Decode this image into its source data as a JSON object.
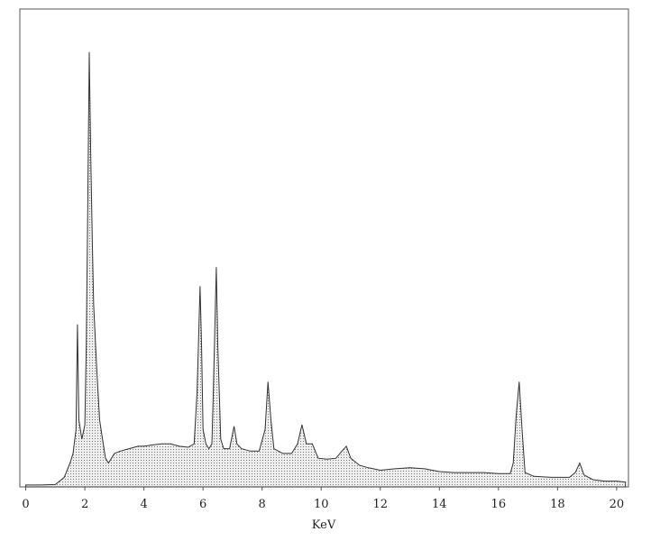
{
  "chart_data": {
    "type": "area",
    "x_label": "KeV",
    "x": [
      0,
      0.5,
      1.0,
      1.1,
      1.3,
      1.5,
      1.6,
      1.7,
      1.75,
      1.8,
      1.9,
      2.0,
      2.05,
      2.1,
      2.15,
      2.2,
      2.25,
      2.3,
      2.4,
      2.5,
      2.6,
      2.7,
      2.8,
      2.9,
      3.0,
      3.2,
      3.5,
      3.8,
      4.0,
      4.3,
      4.6,
      4.9,
      5.2,
      5.5,
      5.7,
      5.8,
      5.9,
      5.95,
      6.0,
      6.1,
      6.2,
      6.3,
      6.35,
      6.45,
      6.5,
      6.6,
      6.7,
      6.9,
      7.05,
      7.15,
      7.3,
      7.6,
      7.9,
      8.1,
      8.2,
      8.3,
      8.4,
      8.7,
      9.0,
      9.2,
      9.35,
      9.5,
      9.7,
      9.9,
      10.2,
      10.5,
      10.7,
      10.85,
      11.0,
      11.3,
      11.6,
      12.0,
      12.5,
      13.0,
      13.5,
      14.0,
      14.5,
      15.0,
      15.5,
      16.0,
      16.4,
      16.5,
      16.6,
      16.7,
      16.8,
      16.9,
      17.2,
      17.8,
      18.4,
      18.6,
      18.75,
      18.9,
      19.2,
      19.6,
      20.0,
      20.3
    ],
    "values": [
      0.4,
      0.4,
      0.5,
      1,
      2,
      5,
      7,
      12,
      34,
      14,
      10,
      13,
      30,
      60,
      91,
      70,
      52,
      38,
      25,
      14,
      10,
      6,
      5,
      6,
      7,
      7.5,
      8,
      8.5,
      8.5,
      8.8,
      9,
      9,
      8.5,
      8.3,
      9,
      20,
      42,
      30,
      12,
      9,
      8,
      9,
      20,
      46,
      30,
      10,
      8,
      8,
      12.7,
      9,
      8,
      7.5,
      7.5,
      12,
      22,
      14,
      8,
      7,
      7,
      9,
      13,
      9,
      9,
      6,
      5.8,
      6,
      7.5,
      8.5,
      6,
      4.5,
      4,
      3.5,
      3.8,
      4,
      3.8,
      3.2,
      3,
      3,
      3,
      2.8,
      2.8,
      5,
      15,
      22,
      12,
      3,
      2.2,
      2,
      2,
      3,
      5,
      2.5,
      1.5,
      1.2,
      1.2,
      1
    ],
    "xlim": [
      -0.2,
      20.4
    ],
    "xticks": [
      0,
      2,
      4,
      6,
      8,
      10,
      12,
      14,
      16,
      18,
      20
    ],
    "ylim": [
      0,
      100
    ],
    "color": "#333333"
  }
}
